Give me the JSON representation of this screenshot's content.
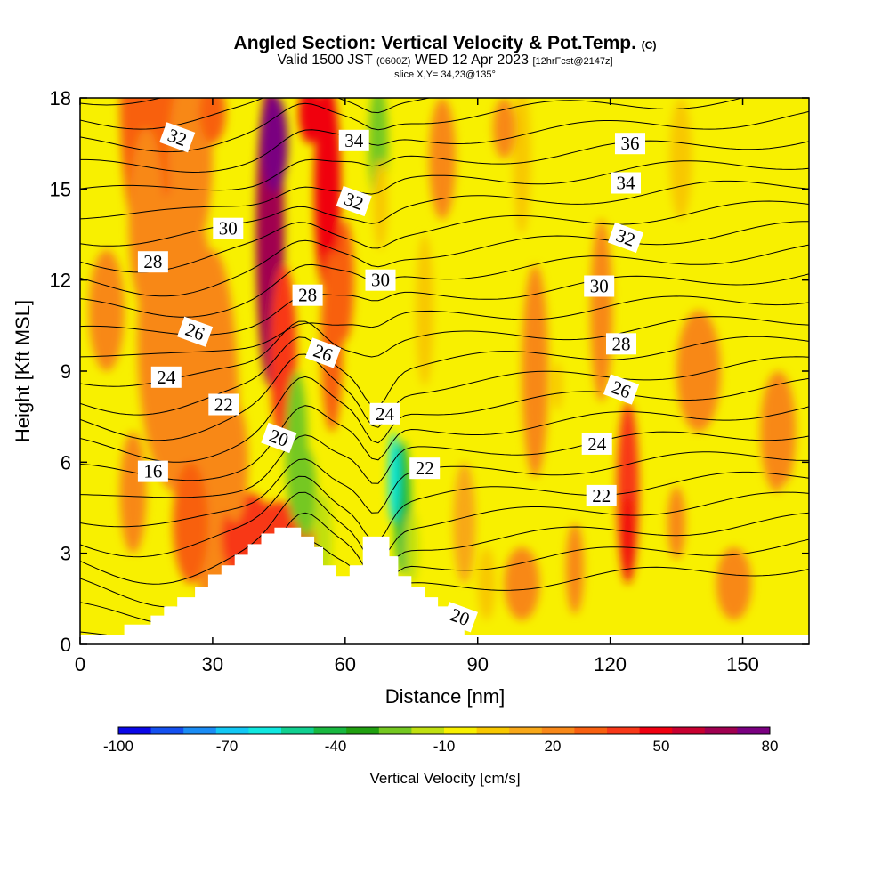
{
  "header": {
    "title": "Angled Section: Vertical Velocity & Pot.Temp.",
    "title_tag": "(C)",
    "subtitle_a": "Valid 1500 JST",
    "subtitle_b": "(0600Z)",
    "subtitle_c": "WED 12 Apr 2023",
    "subtitle_d": "[12hrFcst@2147z]",
    "slice": "slice X,Y= 34,23@135°"
  },
  "chart_data": {
    "type": "heatmap",
    "xlabel": "Distance [nm]",
    "ylabel": "Height [Kft MSL]",
    "xlim": [
      0,
      165
    ],
    "ylim": [
      0,
      18
    ],
    "xticks": [
      "0",
      "30",
      "60",
      "90",
      "120",
      "150"
    ],
    "yticks": [
      "0",
      "3",
      "6",
      "9",
      "12",
      "15",
      "18"
    ],
    "colorbar": {
      "label": "Vertical Velocity [cm/s]",
      "tick_labels": [
        "-100",
        "-70",
        "-40",
        "-10",
        "20",
        "50",
        "80"
      ],
      "colors": [
        "#0a08e8",
        "#1450f0",
        "#1a8cf5",
        "#12c8f5",
        "#10e8e0",
        "#10d090",
        "#18b840",
        "#20a010",
        "#74c820",
        "#c0e010",
        "#f8f000",
        "#f8c800",
        "#f8a818",
        "#f88818",
        "#f86010",
        "#f83818",
        "#f00010",
        "#c80030",
        "#a00050",
        "#7a0080"
      ]
    },
    "terrain_profile_kft": [
      [
        0,
        0.3
      ],
      [
        10,
        0.3
      ],
      [
        10,
        0.65
      ],
      [
        16,
        0.65
      ],
      [
        16,
        0.95
      ],
      [
        19,
        0.95
      ],
      [
        19,
        1.25
      ],
      [
        22,
        1.25
      ],
      [
        22,
        1.55
      ],
      [
        26,
        1.55
      ],
      [
        26,
        1.9
      ],
      [
        29,
        1.9
      ],
      [
        29,
        2.3
      ],
      [
        32,
        2.3
      ],
      [
        32,
        2.6
      ],
      [
        35,
        2.6
      ],
      [
        35,
        2.95
      ],
      [
        38,
        2.95
      ],
      [
        38,
        3.3
      ],
      [
        41,
        3.3
      ],
      [
        41,
        3.65
      ],
      [
        44,
        3.65
      ],
      [
        44,
        3.85
      ],
      [
        50,
        3.85
      ],
      [
        50,
        3.55
      ],
      [
        53,
        3.55
      ],
      [
        53,
        3.2
      ],
      [
        55,
        3.2
      ],
      [
        55,
        2.6
      ],
      [
        58,
        2.6
      ],
      [
        58,
        2.25
      ],
      [
        61,
        2.25
      ],
      [
        61,
        2.6
      ],
      [
        64,
        2.6
      ],
      [
        64,
        3.55
      ],
      [
        70,
        3.55
      ],
      [
        70,
        2.9
      ],
      [
        72,
        2.9
      ],
      [
        72,
        2.25
      ],
      [
        75,
        2.25
      ],
      [
        75,
        1.9
      ],
      [
        78,
        1.9
      ],
      [
        78,
        1.55
      ],
      [
        81,
        1.55
      ],
      [
        81,
        1.25
      ],
      [
        84,
        1.25
      ],
      [
        84,
        0.9
      ],
      [
        87,
        0.9
      ],
      [
        87,
        0.3
      ],
      [
        165,
        0.3
      ]
    ],
    "theta_contours": {
      "units": "C",
      "labels": [
        {
          "text": "32",
          "x": 22,
          "y": 16.7
        },
        {
          "text": "30",
          "x": 33.5,
          "y": 13.7
        },
        {
          "text": "28",
          "x": 16.5,
          "y": 12.6
        },
        {
          "text": "26",
          "x": 26,
          "y": 10.3
        },
        {
          "text": "24",
          "x": 19.5,
          "y": 8.8
        },
        {
          "text": "22",
          "x": 32.5,
          "y": 7.9
        },
        {
          "text": "20",
          "x": 45,
          "y": 6.8
        },
        {
          "text": "16",
          "x": 16.5,
          "y": 5.7
        },
        {
          "text": "34",
          "x": 62,
          "y": 16.6
        },
        {
          "text": "32",
          "x": 62,
          "y": 14.6
        },
        {
          "text": "30",
          "x": 68,
          "y": 12.0
        },
        {
          "text": "28",
          "x": 51.5,
          "y": 11.5
        },
        {
          "text": "26",
          "x": 55,
          "y": 9.6
        },
        {
          "text": "24",
          "x": 69,
          "y": 7.6
        },
        {
          "text": "22",
          "x": 78,
          "y": 5.8
        },
        {
          "text": "20",
          "x": 86,
          "y": 0.9
        },
        {
          "text": "36",
          "x": 124.5,
          "y": 16.5
        },
        {
          "text": "34",
          "x": 123.5,
          "y": 15.2
        },
        {
          "text": "32",
          "x": 123.5,
          "y": 13.4
        },
        {
          "text": "30",
          "x": 117.5,
          "y": 11.8
        },
        {
          "text": "28",
          "x": 122.5,
          "y": 9.9
        },
        {
          "text": "26",
          "x": 122.5,
          "y": 8.4
        },
        {
          "text": "24",
          "x": 117,
          "y": 6.6
        },
        {
          "text": "22",
          "x": 118,
          "y": 4.9
        }
      ]
    },
    "velocity_features": [
      {
        "name": "updraft",
        "x": 44,
        "y0": 8,
        "y1": 18,
        "peak": 80
      },
      {
        "name": "updraft",
        "x": 57,
        "y0": 9,
        "y1": 18,
        "peak": 50
      },
      {
        "name": "downdraft",
        "x": 67.5,
        "y0": 14,
        "y1": 18,
        "peak": -35
      },
      {
        "name": "downdraft",
        "x": 71,
        "y0": 2.5,
        "y1": 7,
        "peak": -75
      },
      {
        "name": "downdraft",
        "x": 48,
        "y0": 3,
        "y1": 7.5,
        "peak": -40
      },
      {
        "name": "updraft",
        "x": 124,
        "y0": 2,
        "y1": 8,
        "peak": 40
      },
      {
        "name": "downdraft",
        "x": 145,
        "y0": 13,
        "y1": 18,
        "peak": -15
      }
    ]
  }
}
